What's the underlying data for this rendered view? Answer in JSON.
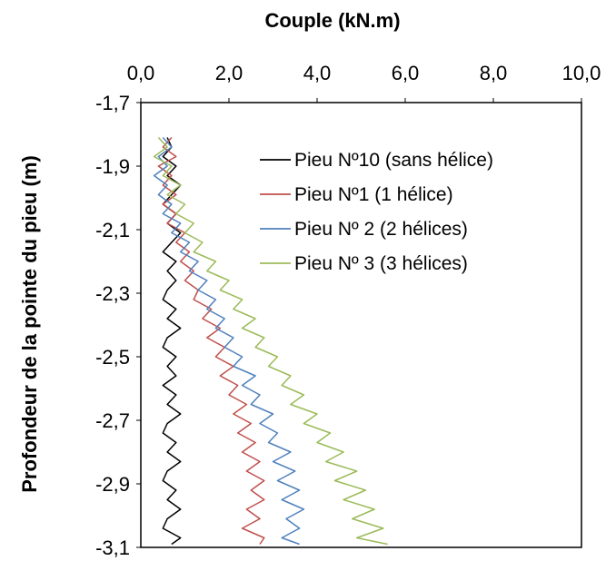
{
  "chart_data": {
    "type": "line",
    "title": "Couple  (kN.m)",
    "xlabel": "Couple  (kN.m)",
    "ylabel": "Profondeur de la pointe du pieu (m)",
    "xlim": [
      0,
      10
    ],
    "ylim": [
      -3.1,
      -1.7
    ],
    "x_ticks": [
      "0,0",
      "2,0",
      "4,0",
      "6,0",
      "8,0",
      "10,0"
    ],
    "y_ticks": [
      "-1,7",
      "-1,9",
      "-2,1",
      "-2,3",
      "-2,5",
      "-2,7",
      "-2,9",
      "-3,1"
    ],
    "x_axis_position": "top",
    "y_axis_inverted": true,
    "grid": false,
    "legend_position": "top-right",
    "series": [
      {
        "name": "Pieu Nº10 (sans hélice)",
        "color": "#000000",
        "points": [
          [
            0.6,
            -1.81
          ],
          [
            0.7,
            -1.84
          ],
          [
            0.5,
            -1.87
          ],
          [
            0.8,
            -1.9
          ],
          [
            0.6,
            -1.93
          ],
          [
            0.9,
            -1.96
          ],
          [
            0.7,
            -1.99
          ],
          [
            0.5,
            -2.02
          ],
          [
            0.8,
            -2.05
          ],
          [
            0.6,
            -2.08
          ],
          [
            0.9,
            -2.11
          ],
          [
            0.7,
            -2.14
          ],
          [
            0.5,
            -2.17
          ],
          [
            0.8,
            -2.2
          ],
          [
            0.6,
            -2.23
          ],
          [
            0.8,
            -2.26
          ],
          [
            0.6,
            -2.29
          ],
          [
            0.5,
            -2.32
          ],
          [
            0.8,
            -2.35
          ],
          [
            0.6,
            -2.38
          ],
          [
            0.9,
            -2.41
          ],
          [
            0.6,
            -2.44
          ],
          [
            0.5,
            -2.47
          ],
          [
            0.8,
            -2.5
          ],
          [
            0.6,
            -2.53
          ],
          [
            0.8,
            -2.56
          ],
          [
            0.5,
            -2.59
          ],
          [
            0.8,
            -2.62
          ],
          [
            0.6,
            -2.65
          ],
          [
            0.9,
            -2.68
          ],
          [
            0.6,
            -2.71
          ],
          [
            0.5,
            -2.74
          ],
          [
            0.8,
            -2.77
          ],
          [
            0.6,
            -2.8
          ],
          [
            0.9,
            -2.83
          ],
          [
            0.6,
            -2.86
          ],
          [
            0.5,
            -2.89
          ],
          [
            0.8,
            -2.92
          ],
          [
            0.6,
            -2.95
          ],
          [
            0.9,
            -2.98
          ],
          [
            0.6,
            -3.01
          ],
          [
            0.5,
            -3.04
          ],
          [
            0.9,
            -3.07
          ],
          [
            0.7,
            -3.09
          ]
        ]
      },
      {
        "name": "Pieu Nº1  (1 hélice)",
        "color": "#c0504d",
        "points": [
          [
            0.7,
            -1.81
          ],
          [
            0.5,
            -1.84
          ],
          [
            0.8,
            -1.87
          ],
          [
            0.4,
            -1.9
          ],
          [
            0.7,
            -1.93
          ],
          [
            0.5,
            -1.96
          ],
          [
            0.8,
            -1.99
          ],
          [
            0.5,
            -2.02
          ],
          [
            0.8,
            -2.05
          ],
          [
            0.6,
            -2.08
          ],
          [
            1.0,
            -2.11
          ],
          [
            0.8,
            -2.14
          ],
          [
            1.1,
            -2.17
          ],
          [
            0.9,
            -2.2
          ],
          [
            1.2,
            -2.23
          ],
          [
            1.0,
            -2.26
          ],
          [
            1.3,
            -2.29
          ],
          [
            1.2,
            -2.32
          ],
          [
            1.6,
            -2.35
          ],
          [
            1.4,
            -2.38
          ],
          [
            1.8,
            -2.41
          ],
          [
            1.5,
            -2.44
          ],
          [
            1.9,
            -2.47
          ],
          [
            1.7,
            -2.5
          ],
          [
            2.1,
            -2.53
          ],
          [
            1.8,
            -2.56
          ],
          [
            2.2,
            -2.59
          ],
          [
            2.0,
            -2.62
          ],
          [
            2.4,
            -2.65
          ],
          [
            2.1,
            -2.68
          ],
          [
            2.5,
            -2.71
          ],
          [
            2.2,
            -2.74
          ],
          [
            2.6,
            -2.77
          ],
          [
            2.3,
            -2.8
          ],
          [
            2.7,
            -2.83
          ],
          [
            2.4,
            -2.86
          ],
          [
            2.8,
            -2.89
          ],
          [
            2.5,
            -2.92
          ],
          [
            2.8,
            -2.95
          ],
          [
            2.4,
            -2.98
          ],
          [
            2.7,
            -3.01
          ],
          [
            2.3,
            -3.04
          ],
          [
            2.8,
            -3.07
          ],
          [
            2.7,
            -3.09
          ]
        ]
      },
      {
        "name": "Pieu Nº 2 (2 hélices)",
        "color": "#4f81bd",
        "points": [
          [
            0.5,
            -1.81
          ],
          [
            0.7,
            -1.84
          ],
          [
            0.4,
            -1.87
          ],
          [
            0.6,
            -1.9
          ],
          [
            0.3,
            -1.93
          ],
          [
            0.6,
            -1.96
          ],
          [
            0.4,
            -1.99
          ],
          [
            0.7,
            -2.02
          ],
          [
            0.5,
            -2.05
          ],
          [
            0.9,
            -2.08
          ],
          [
            0.7,
            -2.11
          ],
          [
            1.1,
            -2.14
          ],
          [
            0.9,
            -2.17
          ],
          [
            1.3,
            -2.2
          ],
          [
            1.1,
            -2.23
          ],
          [
            1.5,
            -2.26
          ],
          [
            1.3,
            -2.29
          ],
          [
            1.7,
            -2.32
          ],
          [
            1.5,
            -2.35
          ],
          [
            1.9,
            -2.38
          ],
          [
            1.7,
            -2.41
          ],
          [
            2.1,
            -2.44
          ],
          [
            1.9,
            -2.47
          ],
          [
            2.3,
            -2.5
          ],
          [
            2.1,
            -2.53
          ],
          [
            2.6,
            -2.56
          ],
          [
            2.3,
            -2.59
          ],
          [
            2.7,
            -2.62
          ],
          [
            2.5,
            -2.65
          ],
          [
            3.0,
            -2.68
          ],
          [
            2.7,
            -2.71
          ],
          [
            3.1,
            -2.74
          ],
          [
            2.9,
            -2.77
          ],
          [
            3.4,
            -2.8
          ],
          [
            3.0,
            -2.83
          ],
          [
            3.5,
            -2.86
          ],
          [
            3.1,
            -2.89
          ],
          [
            3.6,
            -2.92
          ],
          [
            3.2,
            -2.95
          ],
          [
            3.7,
            -2.98
          ],
          [
            3.3,
            -3.01
          ],
          [
            3.6,
            -3.04
          ],
          [
            3.2,
            -3.07
          ],
          [
            3.6,
            -3.09
          ]
        ]
      },
      {
        "name": "Pieu Nº 3 (3 hélices)",
        "color": "#9bbb59",
        "points": [
          [
            0.4,
            -1.81
          ],
          [
            0.6,
            -1.84
          ],
          [
            0.3,
            -1.87
          ],
          [
            0.7,
            -1.9
          ],
          [
            0.5,
            -1.93
          ],
          [
            0.9,
            -1.96
          ],
          [
            0.6,
            -1.99
          ],
          [
            1.0,
            -2.02
          ],
          [
            0.8,
            -2.05
          ],
          [
            1.2,
            -2.08
          ],
          [
            1.0,
            -2.11
          ],
          [
            1.4,
            -2.14
          ],
          [
            1.2,
            -2.17
          ],
          [
            1.7,
            -2.2
          ],
          [
            1.5,
            -2.23
          ],
          [
            2.0,
            -2.26
          ],
          [
            1.8,
            -2.29
          ],
          [
            2.3,
            -2.32
          ],
          [
            2.1,
            -2.35
          ],
          [
            2.6,
            -2.38
          ],
          [
            2.3,
            -2.41
          ],
          [
            2.8,
            -2.44
          ],
          [
            2.6,
            -2.47
          ],
          [
            3.1,
            -2.5
          ],
          [
            2.9,
            -2.53
          ],
          [
            3.4,
            -2.56
          ],
          [
            3.2,
            -2.59
          ],
          [
            3.7,
            -2.62
          ],
          [
            3.4,
            -2.65
          ],
          [
            4.0,
            -2.68
          ],
          [
            3.7,
            -2.71
          ],
          [
            4.3,
            -2.74
          ],
          [
            4.0,
            -2.77
          ],
          [
            4.6,
            -2.8
          ],
          [
            4.2,
            -2.83
          ],
          [
            4.9,
            -2.86
          ],
          [
            4.4,
            -2.89
          ],
          [
            5.1,
            -2.92
          ],
          [
            4.6,
            -2.95
          ],
          [
            5.3,
            -2.98
          ],
          [
            4.8,
            -3.01
          ],
          [
            5.5,
            -3.04
          ],
          [
            4.9,
            -3.07
          ],
          [
            5.6,
            -3.09
          ]
        ]
      }
    ]
  }
}
